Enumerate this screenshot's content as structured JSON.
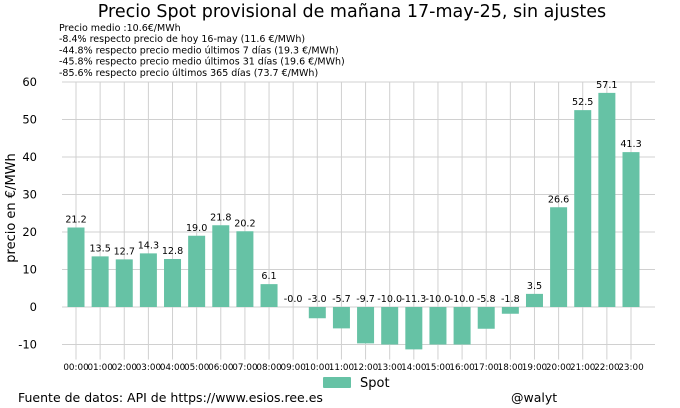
{
  "chart_data": {
    "type": "bar",
    "title": "Precio Spot provisional de mañana 17-may-25, sin ajustes",
    "notes": [
      "Precio medio :10.6€/MWh",
      "-8.4% respecto precio de hoy 16-may (11.6 €/MWh)",
      "-44.8% respecto precio medio últimos 7 días (19.3 €/MWh)",
      "-45.8% respecto precio medio últimos 31 días (19.6 €/MWh)",
      "-85.6% respecto precio últimos 365 días (73.7 €/MWh)"
    ],
    "xlabel": "",
    "ylabel": "precio en €/MWh",
    "ylim": [
      -14,
      60
    ],
    "yticks": [
      -10,
      0,
      10,
      20,
      30,
      40,
      50,
      60
    ],
    "grid": true,
    "legend_position": "bottom-center",
    "categories": [
      "00:00",
      "01:00",
      "02:00",
      "03:00",
      "04:00",
      "05:00",
      "06:00",
      "07:00",
      "08:00",
      "09:00",
      "10:00",
      "11:00",
      "12:00",
      "13:00",
      "14:00",
      "15:00",
      "16:00",
      "17:00",
      "18:00",
      "19:00",
      "20:00",
      "21:00",
      "22:00",
      "23:00"
    ],
    "series": [
      {
        "name": "Spot",
        "color": "#66c2a5",
        "values": [
          21.2,
          13.5,
          12.7,
          14.3,
          12.8,
          19.0,
          21.8,
          20.2,
          6.1,
          -0.0,
          -3.0,
          -5.7,
          -9.7,
          -10.0,
          -11.3,
          -10.0,
          -10.0,
          -5.8,
          -1.8,
          3.5,
          26.6,
          52.5,
          57.1,
          41.3
        ],
        "labels": [
          "21.2",
          "13.5",
          "12.7",
          "14.3",
          "12.8",
          "19.0",
          "21.8",
          "20.2",
          "6.1",
          "-0.0",
          "-3.0",
          "-5.7",
          "-9.7",
          "-10.0",
          "-11.3",
          "-10.0",
          "-10.0",
          "-5.8",
          "-1.8",
          "3.5",
          "26.6",
          "52.5",
          "57.1",
          "41.3"
        ]
      }
    ]
  },
  "footer": {
    "source": "Fuente de datos: API de https://www.esios.ree.es",
    "author": "@walyt"
  }
}
